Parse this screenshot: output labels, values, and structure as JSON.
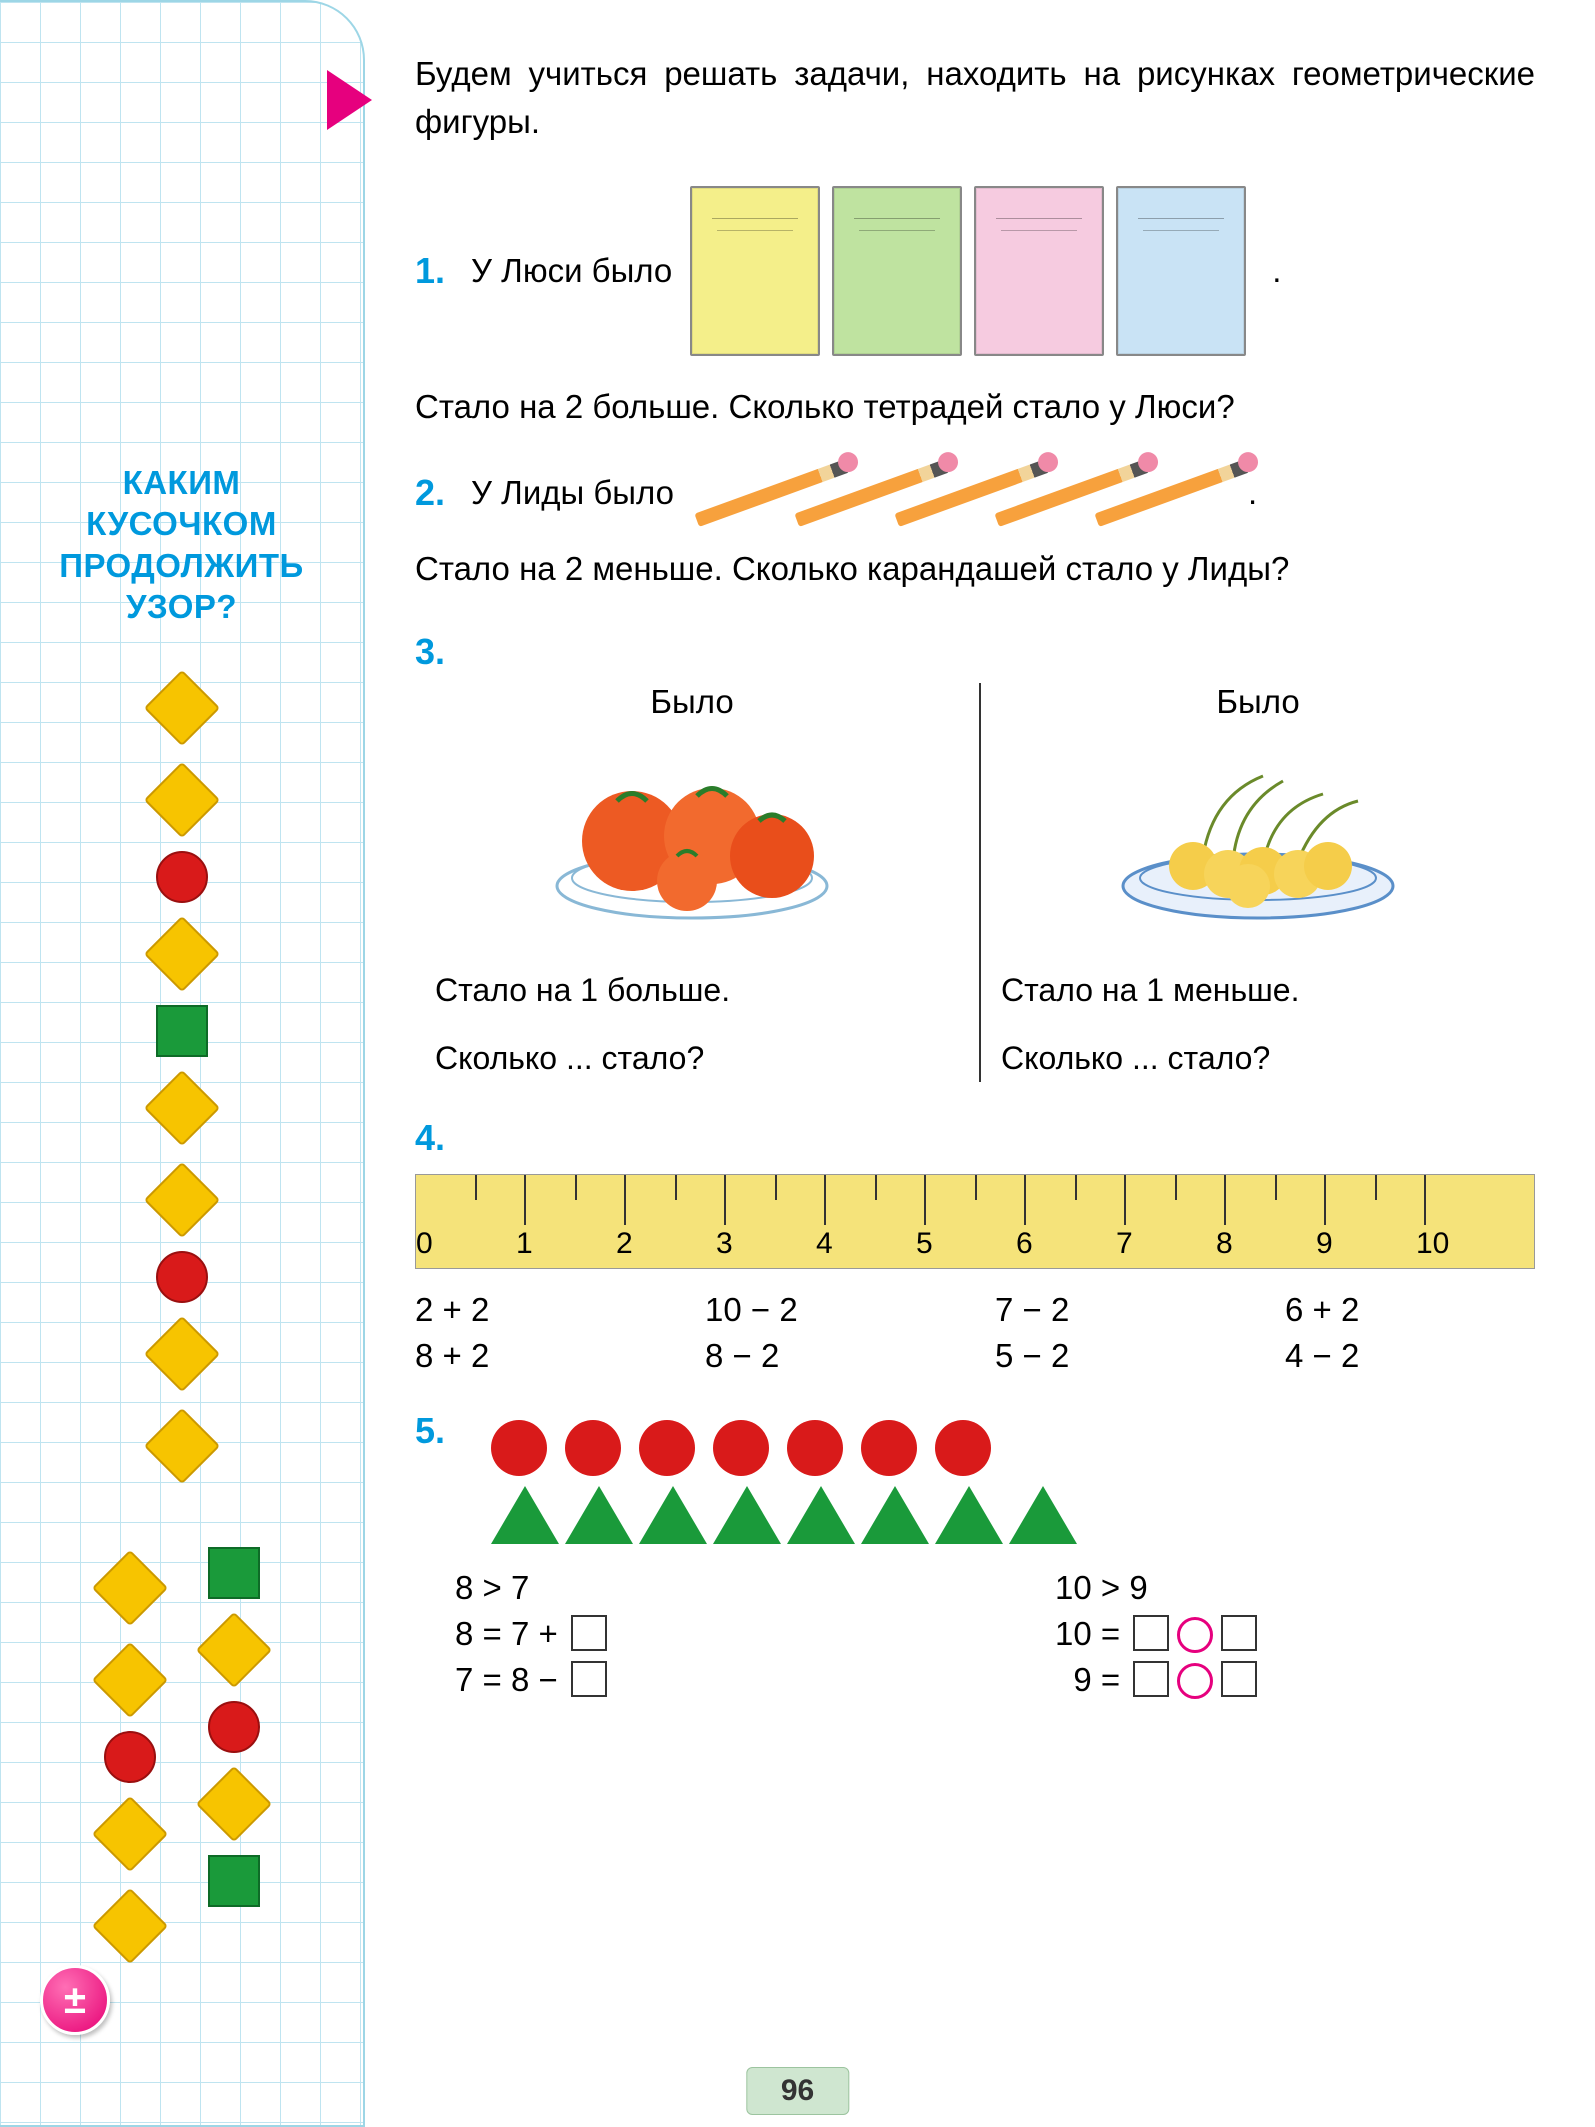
{
  "sidebar": {
    "title_lines": [
      "КАКИМ",
      "КУСОЧКОМ",
      "ПРОДОЛЖИТЬ",
      "УЗОР?"
    ],
    "title_color": "#0099dd",
    "main_pattern": [
      "diamond",
      "diamond",
      "circle",
      "diamond",
      "square",
      "diamond",
      "diamond",
      "circle",
      "diamond",
      "diamond"
    ],
    "option_left": [
      "diamond",
      "diamond",
      "circle",
      "diamond",
      "diamond"
    ],
    "option_right": [
      "square",
      "diamond",
      "circle",
      "diamond",
      "square"
    ],
    "shape_colors": {
      "diamond": "#f7c400",
      "circle": "#d91a1a",
      "square": "#1a9a3a"
    },
    "badge": "±",
    "badge_color": "#e6007e"
  },
  "intro": "Будем учиться решать задачи, находить на рисунках геометрические фигуры.",
  "arrow_color": "#e6007e",
  "tasks": {
    "1": {
      "num": "1.",
      "lead": "У Люси было",
      "notebook_colors": [
        "#f4ef8a",
        "#bfe3a0",
        "#f6cbe0",
        "#c9e3f5"
      ],
      "follow": "Стало на 2 больше. Сколько тетрадей стало у Люси?"
    },
    "2": {
      "num": "2.",
      "lead": "У Лиды было",
      "pencil_count": 5,
      "pencil_color": "#f7a13d",
      "follow": "Стало на 2 меньше. Сколько карандашей стало у Лиды?"
    },
    "3": {
      "num": "3.",
      "left": {
        "label": "Было",
        "q1": "Стало на 1 больше.",
        "q2": "Сколько ... стало?"
      },
      "right": {
        "label": "Было",
        "q1": "Стало на 1 меньше.",
        "q2": "Сколько ... стало?"
      }
    },
    "4": {
      "num": "4.",
      "ruler": {
        "min": 0,
        "max": 10,
        "bg": "#f5e37a",
        "ticks": [
          "0",
          "1",
          "2",
          "3",
          "4",
          "5",
          "6",
          "7",
          "8",
          "9",
          "10"
        ]
      },
      "expressions": [
        [
          "2 + 2",
          "10 − 2",
          "7 − 2",
          "6 + 2"
        ],
        [
          "8 + 2",
          "8 − 2",
          "5 − 2",
          "4 − 2"
        ]
      ]
    },
    "5": {
      "num": "5.",
      "circles": 7,
      "circle_color": "#d91a1a",
      "triangles": 8,
      "triangle_color": "#1a9a3a",
      "equations_left": [
        "8 > 7",
        "8 = 7 + □",
        "7 = 8 − □"
      ],
      "equations_right": [
        "10 > 9",
        "10 = □ ○ □",
        "  9 = □ ○ □"
      ]
    }
  },
  "page_number": "96"
}
